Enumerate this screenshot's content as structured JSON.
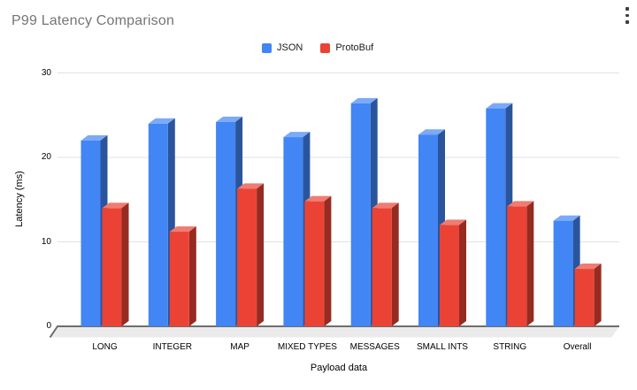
{
  "title": "P99 Latency Comparison",
  "menu": {
    "icon": "kebab-vertical",
    "glyph": "⋮"
  },
  "legend": {
    "position": "top-center",
    "items": [
      {
        "label": "JSON",
        "color": "#4285F4"
      },
      {
        "label": "ProtoBuf",
        "color": "#EA4335"
      }
    ]
  },
  "colors": {
    "title_text": "#757575",
    "axis_text": "#000000",
    "gridline": "#e2e2e2",
    "baseline": "#6e6e6e",
    "floor": "#ebebeb",
    "json_bar": "#4285F4",
    "protobuf_bar": "#EA4335"
  },
  "chart_data": {
    "type": "bar",
    "style": "3d-column",
    "title": "P99 Latency Comparison",
    "xlabel": "Payload data",
    "ylabel": "Latency (ms)",
    "ylim": [
      0,
      30
    ],
    "yticks": [
      0,
      10,
      20,
      30
    ],
    "grid": true,
    "legend_position": "top-center",
    "categories": [
      "LONG",
      "INTEGER",
      "MAP",
      "MIXED TYPES",
      "MESSAGES",
      "SMALL INTS",
      "STRING",
      "Overall"
    ],
    "series": [
      {
        "name": "JSON",
        "color": "#4285F4",
        "values": [
          22.0,
          24.0,
          24.2,
          22.4,
          26.4,
          22.7,
          25.8,
          12.5
        ]
      },
      {
        "name": "ProtoBuf",
        "color": "#EA4335",
        "values": [
          14.0,
          11.2,
          16.3,
          14.8,
          14.0,
          12.0,
          14.2,
          6.8
        ]
      }
    ]
  }
}
